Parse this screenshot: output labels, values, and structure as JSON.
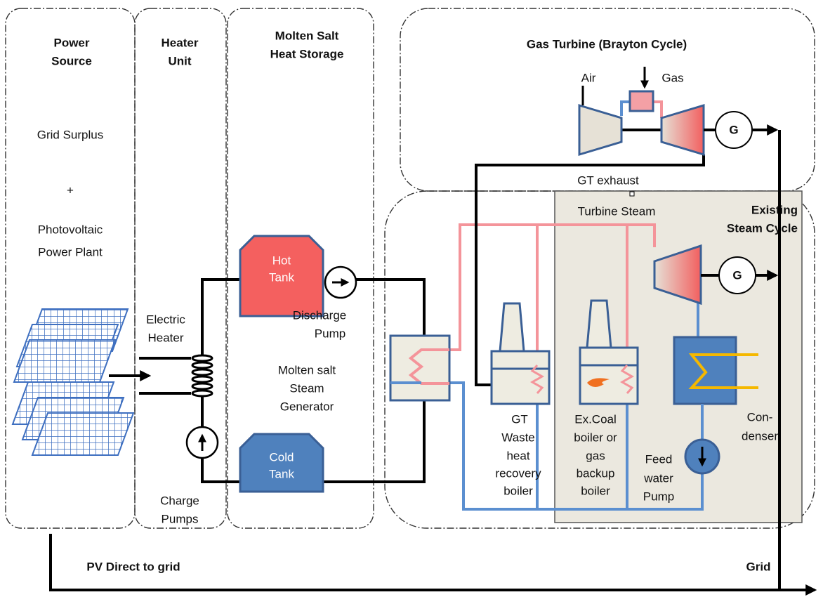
{
  "power_source": {
    "title": [
      "Power",
      "Source"
    ],
    "lines": [
      "Grid Surplus",
      "+",
      "Photovoltaic",
      "Power Plant"
    ]
  },
  "heater_unit": {
    "title": [
      "Heater",
      "Unit"
    ],
    "electric_heater": [
      "Electric",
      "Heater"
    ],
    "charge_pumps": [
      "Charge",
      "Pumps"
    ]
  },
  "heat_storage": {
    "title": [
      "Molten Salt",
      "Heat Storage"
    ],
    "hot_tank": [
      "Hot",
      "Tank"
    ],
    "cold_tank": [
      "Cold",
      "Tank"
    ],
    "discharge_pump": [
      "Discharge",
      "Pump"
    ],
    "steam_generator": [
      "Molten salt",
      "Steam",
      "Generator"
    ]
  },
  "gas_turbine": {
    "title": "Gas Turbine (Brayton Cycle)",
    "air": "Air",
    "gas": "Gas",
    "generator": "G",
    "exhaust": "GT exhaust"
  },
  "steam_cycle": {
    "title": [
      "Existing",
      "Steam Cycle"
    ],
    "turbine_steam": "Turbine Steam",
    "generator": "G",
    "hrsg": [
      "GT",
      "Waste",
      "heat",
      "recovery",
      "boiler"
    ],
    "backup_boiler": [
      "Ex.Coal",
      "boiler or",
      "gas",
      "backup",
      "boiler"
    ],
    "condenser": [
      "Con-",
      "denser"
    ],
    "feed_pump": [
      "Feed",
      "water",
      "Pump"
    ]
  },
  "grid": {
    "pv_direct": "PV Direct to grid",
    "grid": "Grid"
  }
}
